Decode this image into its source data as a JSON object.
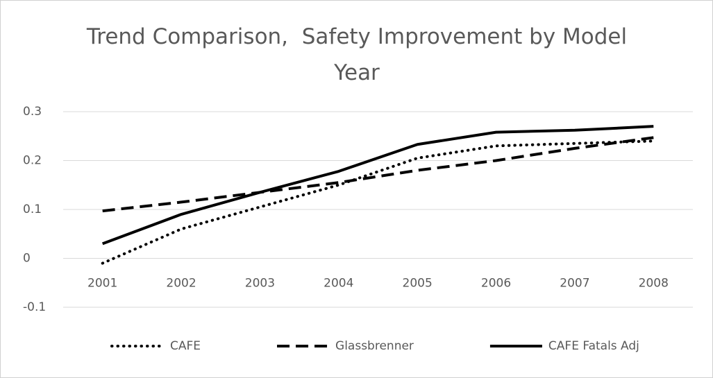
{
  "chart_data": {
    "type": "line",
    "title": "Trend Comparison,  Safety Improvement by Model Year",
    "categories": [
      "2001",
      "2002",
      "2003",
      "2004",
      "2005",
      "2006",
      "2007",
      "2008"
    ],
    "series": [
      {
        "name": "CAFE",
        "color": "#000000",
        "dash": "dotted",
        "values": [
          -0.01,
          0.06,
          0.105,
          0.15,
          0.205,
          0.23,
          0.235,
          0.24
        ]
      },
      {
        "name": "Glassbrenner",
        "color": "#000000",
        "dash": "dashed",
        "values": [
          0.097,
          0.115,
          0.135,
          0.155,
          0.18,
          0.2,
          0.225,
          0.247
        ]
      },
      {
        "name": "CAFE Fatals Adj",
        "color": "#000000",
        "dash": "solid",
        "values": [
          0.03,
          0.09,
          0.135,
          0.178,
          0.233,
          0.258,
          0.262,
          0.27
        ]
      }
    ],
    "ylim": [
      -0.1,
      0.3
    ],
    "yticks": [
      -0.1,
      0,
      0.1,
      0.2,
      0.3
    ],
    "grid": true,
    "legend": "bottom"
  }
}
